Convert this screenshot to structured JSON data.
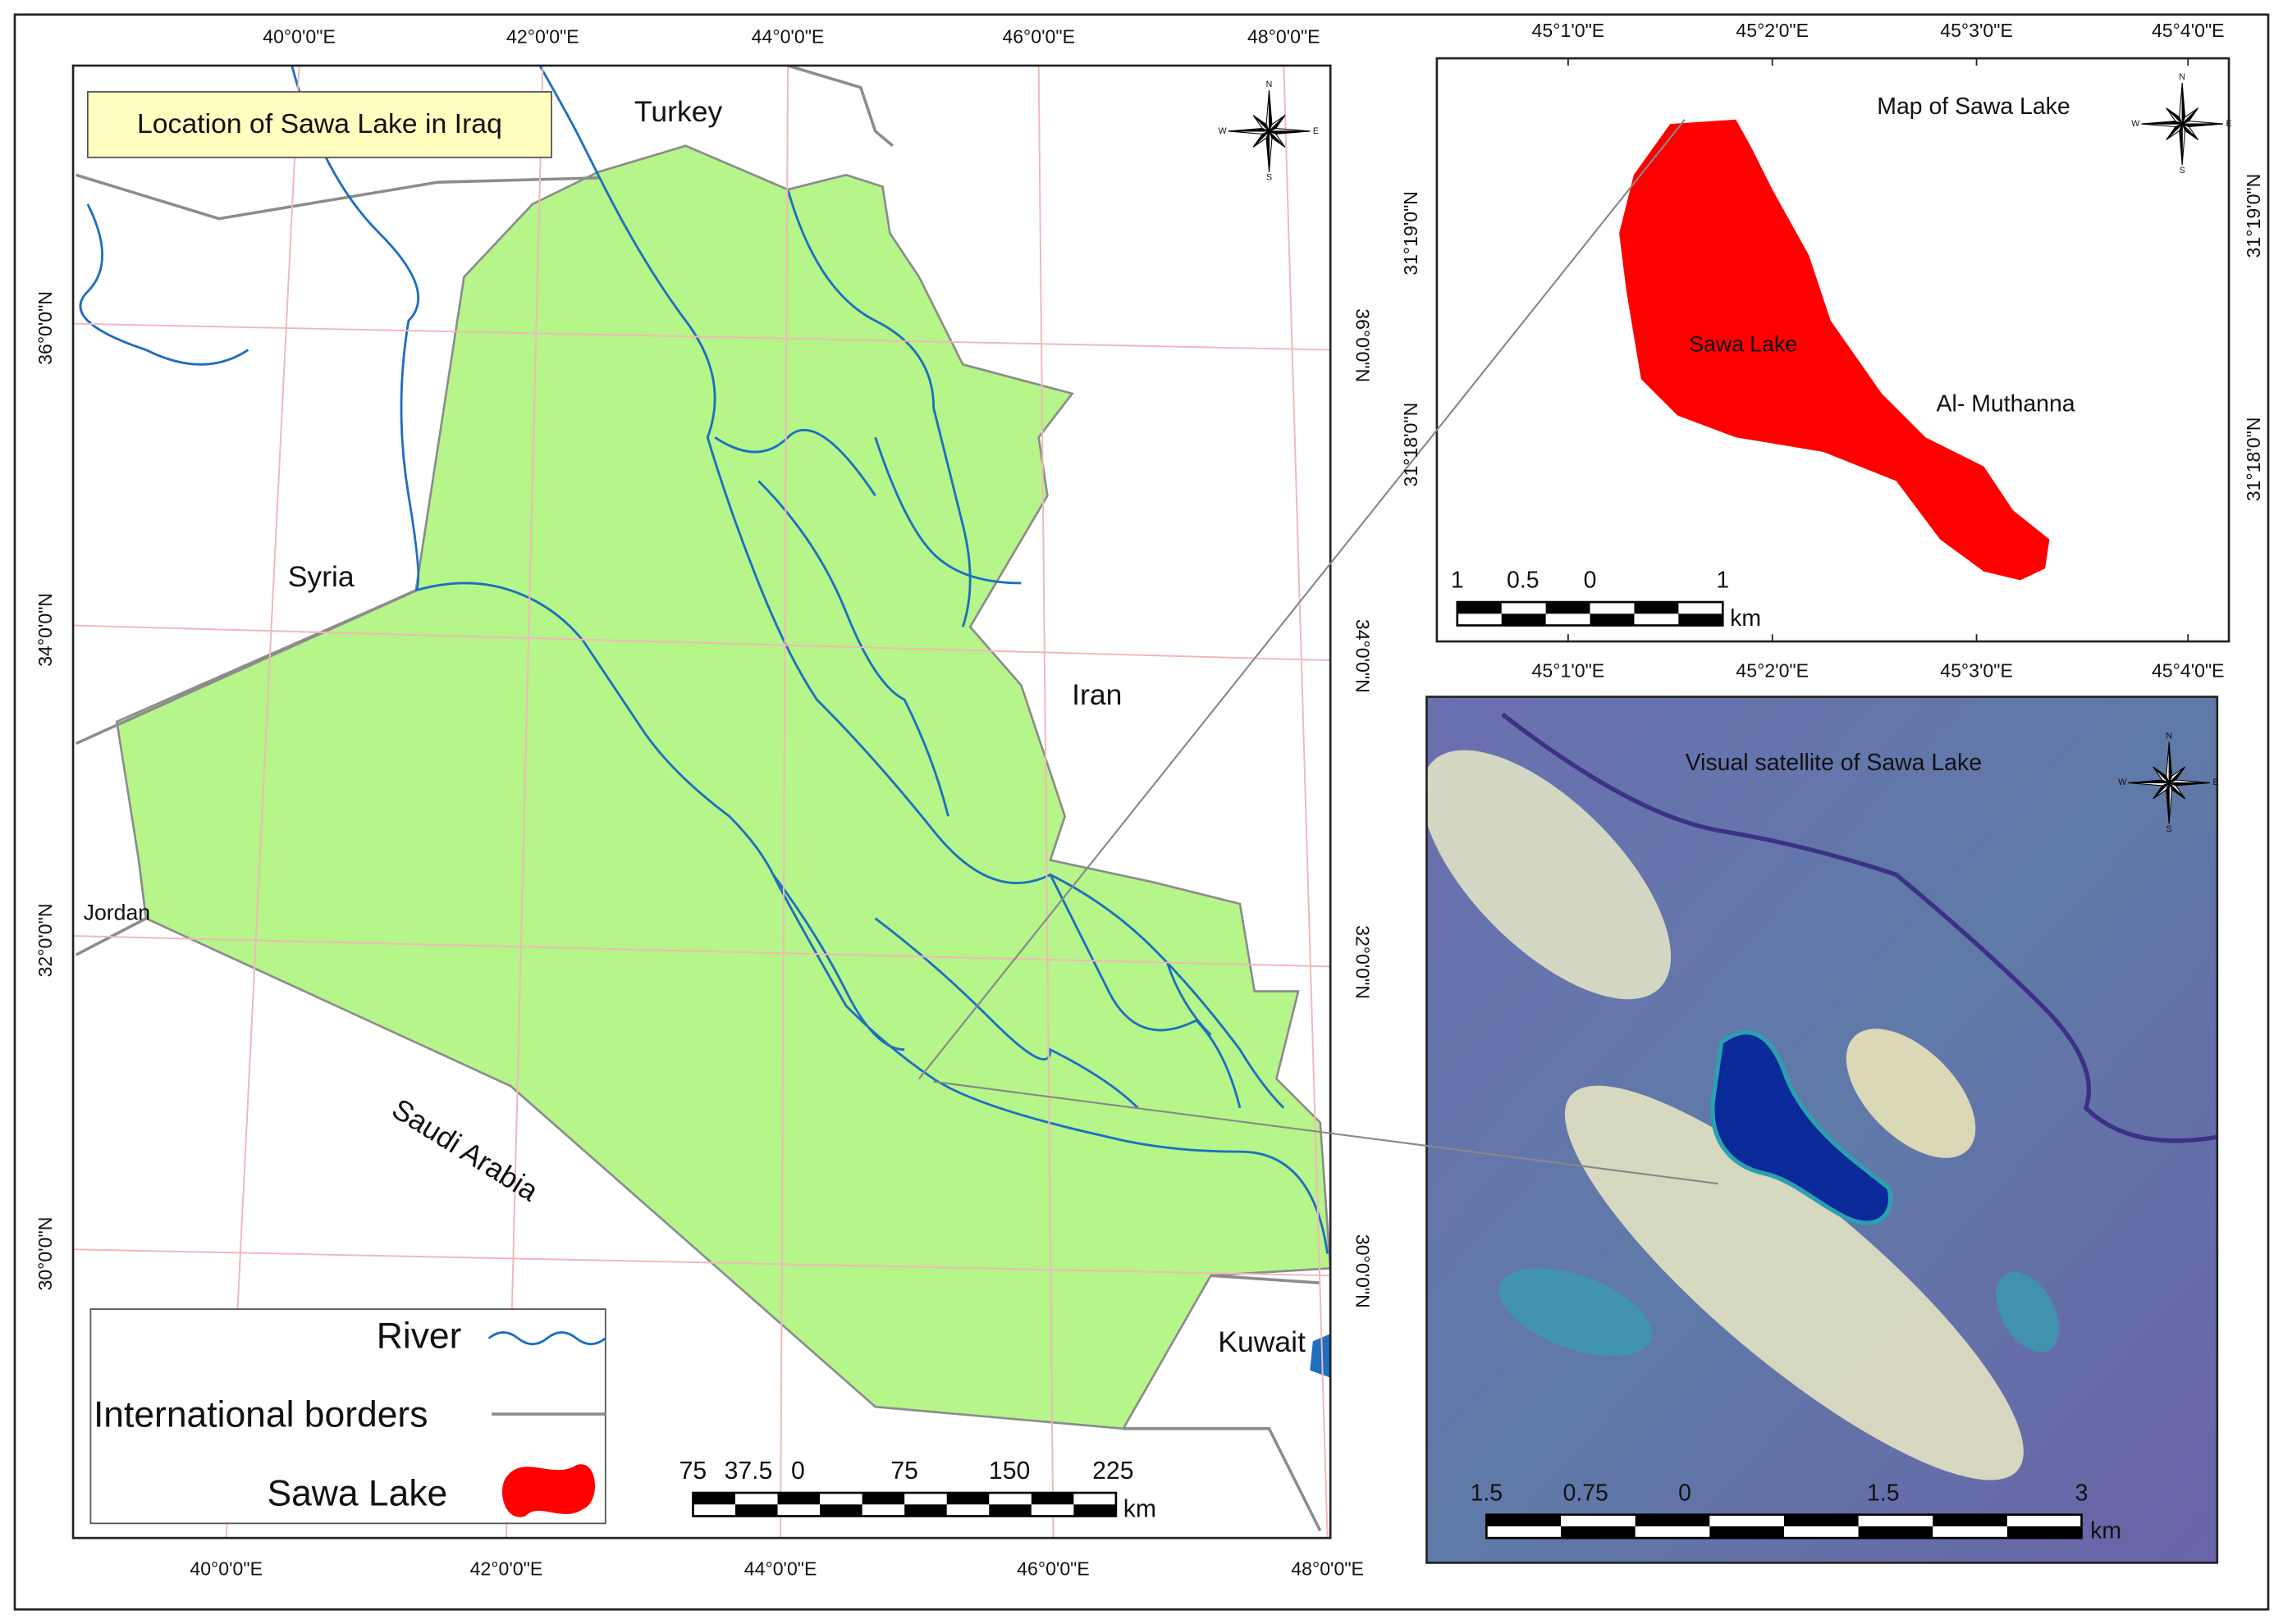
{
  "main_map": {
    "title": "Location of Sawa Lake in Iraq",
    "x_ticks": [
      "40°0'0\"E",
      "42°0'0\"E",
      "44°0'0\"E",
      "46°0'0\"E",
      "48°0'0\"E"
    ],
    "y_ticks": [
      "36°0'0\"N",
      "34°0'0\"N",
      "32°0'0\"N",
      "30°0'0\"N"
    ],
    "countries": [
      "Turkey",
      "Syria",
      "Iran",
      "Jordan",
      "Saudi Arabia",
      "Kuwait"
    ],
    "legend": [
      "River",
      "International borders",
      "Sawa Lake"
    ],
    "scale": {
      "labels": [
        "75",
        "37.5",
        "0",
        "75",
        "150",
        "225"
      ],
      "unit": "km"
    }
  },
  "lake_map": {
    "title": "Map of Sawa Lake",
    "lake_label": "Sawa Lake",
    "region_label": "Al- Muthanna",
    "x_ticks": [
      "45°1'0\"E",
      "45°2'0\"E",
      "45°3'0\"E",
      "45°4'0\"E"
    ],
    "y_ticks": [
      "31°19'0\"N",
      "31°18'0\"N"
    ],
    "scale": {
      "labels": [
        "1",
        "0.5",
        "0",
        "1"
      ],
      "unit": "km"
    }
  },
  "satellite": {
    "title": "Visual satellite of  Sawa Lake",
    "scale": {
      "labels": [
        "1.5",
        "0.75",
        "0",
        "1.5",
        "3"
      ],
      "unit": "km"
    }
  },
  "compass": {
    "n": "N",
    "s": "S",
    "e": "E",
    "w": "W"
  }
}
